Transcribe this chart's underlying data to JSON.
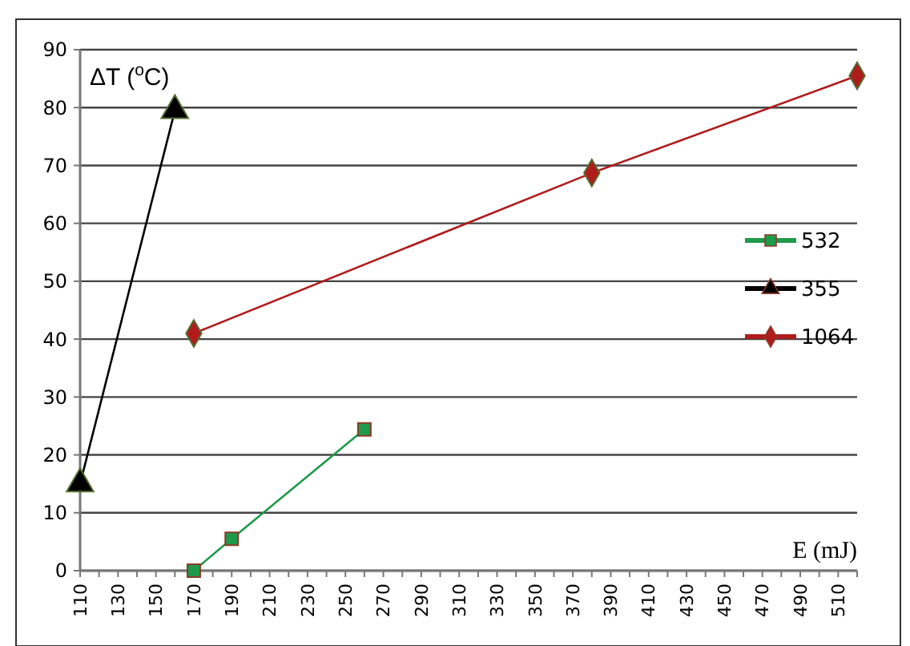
{
  "chart_data": {
    "type": "line",
    "xlabel": "E (mJ)",
    "ylabel": "ΔT ($^{o}$C)",
    "xlim": [
      110,
      520
    ],
    "ylim": [
      0,
      90
    ],
    "xticks": [
      110,
      {
        "value": 120,
        "label": null
      },
      130,
      {
        "value": 140,
        "label": null
      },
      150,
      {
        "value": 160,
        "label": null
      },
      170,
      {
        "value": 180,
        "label": null
      },
      190,
      {
        "value": 200,
        "label": null
      },
      210,
      {
        "value": 220,
        "label": null
      },
      230,
      {
        "value": 240,
        "label": null
      },
      250,
      {
        "value": 260,
        "label": null
      },
      270,
      {
        "value": 280,
        "label": null
      },
      290,
      {
        "value": 300,
        "label": null
      },
      310,
      {
        "value": 320,
        "label": null
      },
      330,
      {
        "value": 340,
        "label": null
      },
      350,
      {
        "value": 360,
        "label": null
      },
      370,
      {
        "value": 380,
        "label": null
      },
      390,
      {
        "value": 400,
        "label": null
      },
      410,
      {
        "value": 420,
        "label": null
      },
      430,
      {
        "value": 440,
        "label": null
      },
      450,
      {
        "value": 460,
        "label": null
      },
      470,
      {
        "value": 480,
        "label": null
      },
      490,
      {
        "value": 500,
        "label": null
      },
      510,
      {
        "value": 520,
        "label": null
      }
    ],
    "yticks": [
      0,
      10,
      20,
      30,
      40,
      50,
      60,
      70,
      80,
      90
    ],
    "grid": "y",
    "legend": "right",
    "series": [
      {
        "name": "532",
        "color": "#1f9a4a",
        "marker": "square",
        "x": [
          170,
          190,
          260
        ],
        "values": [
          0,
          5.5,
          24.4
        ]
      },
      {
        "name": "355",
        "color": "#000000",
        "marker": "triangle",
        "x": [
          110,
          160
        ],
        "values": [
          15,
          79.5
        ]
      },
      {
        "name": "1064",
        "color": "#b01c1c",
        "marker": "diamond",
        "x": [
          170,
          380,
          520
        ],
        "values": [
          41,
          68.7,
          85.5
        ]
      }
    ]
  }
}
